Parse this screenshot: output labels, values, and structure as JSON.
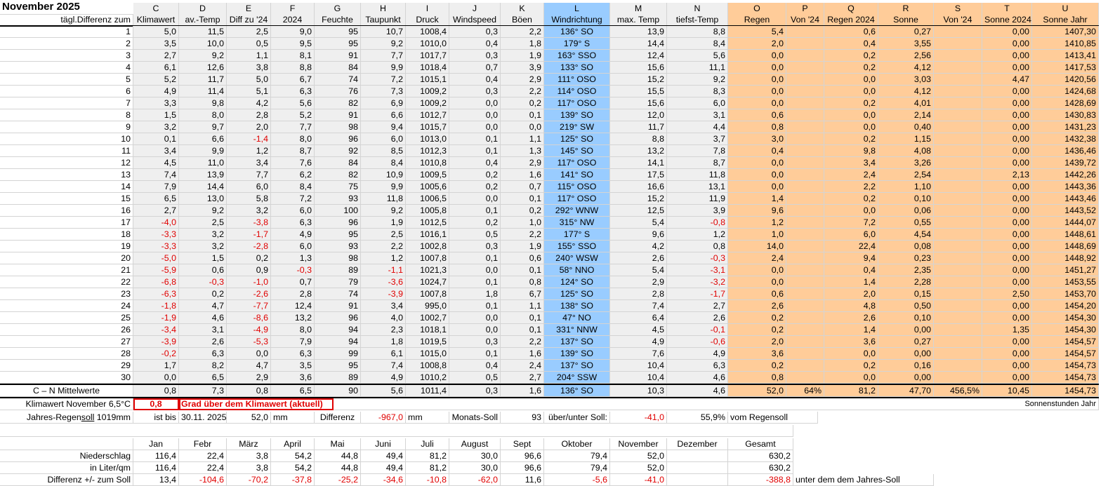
{
  "title": "November 2025",
  "column_letters": [
    "C",
    "D",
    "E",
    "F",
    "G",
    "H",
    "I",
    "J",
    "K",
    "L",
    "M",
    "N",
    "O",
    "P",
    "Q",
    "R",
    "S",
    "T",
    "U"
  ],
  "header_left": "tägl.Differenz zum",
  "column_names": [
    "Klimawert",
    "av.-Temp",
    "Diff zu '24",
    "2024",
    "Feuchte",
    "Taupunkt",
    "Druck",
    "Windspeed",
    "Böen",
    "Windrichtung",
    "max. Temp",
    "tiefst-Temp",
    "Regen",
    "Von '24",
    "Regen 2024",
    "Sonne",
    "Von '24",
    "Sonne 2024",
    "Sonne Jahr"
  ],
  "days": [
    [
      "1",
      "5,0",
      "11,5",
      "2,5",
      "9,0",
      "95",
      "10,7",
      "1008,4",
      "0,3",
      "2,2",
      "136° SO",
      "13,9",
      "8,8",
      "5,4",
      "",
      "0,6",
      "0,27",
      "",
      "0,00",
      "1407,30"
    ],
    [
      "2",
      "3,5",
      "10,0",
      "0,5",
      "9,5",
      "95",
      "9,2",
      "1010,0",
      "0,4",
      "1,8",
      "179° S",
      "14,4",
      "8,4",
      "2,0",
      "",
      "0,4",
      "3,55",
      "",
      "0,00",
      "1410,85"
    ],
    [
      "3",
      "2,7",
      "9,2",
      "1,1",
      "8,1",
      "91",
      "7,7",
      "1017,7",
      "0,3",
      "1,9",
      "163° SSO",
      "12,4",
      "5,6",
      "0,0",
      "",
      "0,2",
      "2,56",
      "",
      "0,00",
      "1413,41"
    ],
    [
      "4",
      "6,1",
      "12,6",
      "3,8",
      "8,8",
      "84",
      "9,9",
      "1018,4",
      "0,7",
      "3,9",
      "133° SO",
      "15,6",
      "11,1",
      "0,0",
      "",
      "0,2",
      "4,12",
      "",
      "0,00",
      "1417,53"
    ],
    [
      "5",
      "5,2",
      "11,7",
      "5,0",
      "6,7",
      "74",
      "7,2",
      "1015,1",
      "0,4",
      "2,9",
      "111° OSO",
      "15,2",
      "9,2",
      "0,0",
      "",
      "0,0",
      "3,03",
      "",
      "4,47",
      "1420,56"
    ],
    [
      "6",
      "4,9",
      "11,4",
      "5,1",
      "6,3",
      "76",
      "7,3",
      "1009,2",
      "0,3",
      "2,2",
      "114° OSO",
      "15,5",
      "8,3",
      "0,0",
      "",
      "0,0",
      "4,12",
      "",
      "0,00",
      "1424,68"
    ],
    [
      "7",
      "3,3",
      "9,8",
      "4,2",
      "5,6",
      "82",
      "6,9",
      "1009,2",
      "0,0",
      "0,2",
      "117° OSO",
      "15,6",
      "6,0",
      "0,0",
      "",
      "0,2",
      "4,01",
      "",
      "0,00",
      "1428,69"
    ],
    [
      "8",
      "1,5",
      "8,0",
      "2,8",
      "5,2",
      "91",
      "6,6",
      "1012,7",
      "0,0",
      "0,1",
      "139° SO",
      "12,0",
      "3,1",
      "0,6",
      "",
      "0,0",
      "2,14",
      "",
      "0,00",
      "1430,83"
    ],
    [
      "9",
      "3,2",
      "9,7",
      "2,0",
      "7,7",
      "98",
      "9,4",
      "1015,7",
      "0,0",
      "0,0",
      "219° SW",
      "11,7",
      "4,4",
      "0,8",
      "",
      "0,0",
      "0,40",
      "",
      "0,00",
      "1431,23"
    ],
    [
      "10",
      "0,1",
      "6,6",
      "-1,4",
      "8,0",
      "96",
      "6,0",
      "1013,0",
      "0,1",
      "1,1",
      "125° SO",
      "8,8",
      "3,7",
      "3,0",
      "",
      "0,2",
      "1,15",
      "",
      "0,00",
      "1432,38"
    ],
    [
      "11",
      "3,4",
      "9,9",
      "1,2",
      "8,7",
      "92",
      "8,5",
      "1012,3",
      "0,1",
      "1,3",
      "145° SO",
      "13,2",
      "7,8",
      "0,4",
      "",
      "9,8",
      "4,08",
      "",
      "0,00",
      "1436,46"
    ],
    [
      "12",
      "4,5",
      "11,0",
      "3,4",
      "7,6",
      "84",
      "8,4",
      "1010,8",
      "0,4",
      "2,9",
      "117° OSO",
      "14,1",
      "8,7",
      "0,0",
      "",
      "3,4",
      "3,26",
      "",
      "0,00",
      "1439,72"
    ],
    [
      "13",
      "7,4",
      "13,9",
      "7,7",
      "6,2",
      "82",
      "10,9",
      "1009,5",
      "0,2",
      "1,6",
      "141° SO",
      "17,5",
      "11,8",
      "0,0",
      "",
      "2,4",
      "2,54",
      "",
      "2,13",
      "1442,26"
    ],
    [
      "14",
      "7,9",
      "14,4",
      "6,0",
      "8,4",
      "75",
      "9,9",
      "1005,6",
      "0,2",
      "0,7",
      "115° OSO",
      "16,6",
      "13,1",
      "0,0",
      "",
      "2,2",
      "1,10",
      "",
      "0,00",
      "1443,36"
    ],
    [
      "15",
      "6,5",
      "13,0",
      "5,8",
      "7,2",
      "93",
      "11,8",
      "1006,5",
      "0,0",
      "0,1",
      "117° OSO",
      "15,2",
      "11,9",
      "1,4",
      "",
      "0,2",
      "0,10",
      "",
      "0,00",
      "1443,46"
    ],
    [
      "16",
      "2,7",
      "9,2",
      "3,2",
      "6,0",
      "100",
      "9,2",
      "1005,8",
      "0,1",
      "0,2",
      "292° WNW",
      "12,5",
      "3,9",
      "9,6",
      "",
      "0,0",
      "0,06",
      "",
      "0,00",
      "1443,52"
    ],
    [
      "17",
      "-4,0",
      "2,5",
      "-3,8",
      "6,3",
      "96",
      "1,9",
      "1012,5",
      "0,2",
      "1,0",
      "315° NW",
      "5,4",
      "-0,8",
      "1,2",
      "",
      "7,2",
      "0,55",
      "",
      "0,00",
      "1444,07"
    ],
    [
      "18",
      "-3,3",
      "3,2",
      "-1,7",
      "4,9",
      "95",
      "2,5",
      "1016,1",
      "0,5",
      "2,2",
      "177° S",
      "9,6",
      "1,2",
      "1,0",
      "",
      "6,0",
      "4,54",
      "",
      "0,00",
      "1448,61"
    ],
    [
      "19",
      "-3,3",
      "3,2",
      "-2,8",
      "6,0",
      "93",
      "2,2",
      "1002,8",
      "0,3",
      "1,9",
      "155° SSO",
      "4,2",
      "0,8",
      "14,0",
      "",
      "22,4",
      "0,08",
      "",
      "0,00",
      "1448,69"
    ],
    [
      "20",
      "-5,0",
      "1,5",
      "0,2",
      "1,3",
      "98",
      "1,2",
      "1007,8",
      "0,1",
      "0,6",
      "240° WSW",
      "2,6",
      "-0,3",
      "2,4",
      "",
      "9,4",
      "0,23",
      "",
      "0,00",
      "1448,92"
    ],
    [
      "21",
      "-5,9",
      "0,6",
      "0,9",
      "-0,3",
      "89",
      "-1,1",
      "1021,3",
      "0,0",
      "0,1",
      "58° NNO",
      "5,4",
      "-3,1",
      "0,0",
      "",
      "0,4",
      "2,35",
      "",
      "0,00",
      "1451,27"
    ],
    [
      "22",
      "-6,8",
      "-0,3",
      "-1,0",
      "0,7",
      "79",
      "-3,6",
      "1024,7",
      "0,1",
      "0,8",
      "124° SO",
      "2,9",
      "-3,2",
      "0,0",
      "",
      "1,4",
      "2,28",
      "",
      "0,00",
      "1453,55"
    ],
    [
      "23",
      "-6,3",
      "0,2",
      "-2,6",
      "2,8",
      "74",
      "-3,9",
      "1007,8",
      "1,8",
      "6,7",
      "125° SO",
      "2,8",
      "-1,7",
      "0,6",
      "",
      "2,0",
      "0,15",
      "",
      "2,50",
      "1453,70"
    ],
    [
      "24",
      "-1,8",
      "4,7",
      "-7,7",
      "12,4",
      "91",
      "3,4",
      "995,0",
      "0,1",
      "1,1",
      "138° SO",
      "7,4",
      "2,7",
      "2,6",
      "",
      "4,8",
      "0,50",
      "",
      "0,00",
      "1454,20"
    ],
    [
      "25",
      "-1,9",
      "4,6",
      "-8,6",
      "13,2",
      "96",
      "4,0",
      "1002,7",
      "0,0",
      "0,1",
      "47° NO",
      "6,4",
      "2,6",
      "0,2",
      "",
      "2,6",
      "0,10",
      "",
      "0,00",
      "1454,30"
    ],
    [
      "26",
      "-3,4",
      "3,1",
      "-4,9",
      "8,0",
      "94",
      "2,3",
      "1018,1",
      "0,0",
      "0,1",
      "331° NNW",
      "4,5",
      "-0,1",
      "0,2",
      "",
      "1,4",
      "0,00",
      "",
      "1,35",
      "1454,30"
    ],
    [
      "27",
      "-3,9",
      "2,6",
      "-5,3",
      "7,9",
      "94",
      "1,8",
      "1019,5",
      "0,3",
      "2,2",
      "137° SO",
      "4,9",
      "-0,6",
      "2,0",
      "",
      "3,6",
      "0,27",
      "",
      "0,00",
      "1454,57"
    ],
    [
      "28",
      "-0,2",
      "6,3",
      "0,0",
      "6,3",
      "99",
      "6,1",
      "1015,0",
      "0,1",
      "1,6",
      "139° SO",
      "7,6",
      "4,9",
      "3,6",
      "",
      "0,0",
      "0,00",
      "",
      "0,00",
      "1454,57"
    ],
    [
      "29",
      "1,7",
      "8,2",
      "4,7",
      "3,5",
      "95",
      "7,4",
      "1008,8",
      "0,4",
      "2,4",
      "137° SO",
      "10,4",
      "6,3",
      "0,2",
      "",
      "0,2",
      "0,16",
      "",
      "0,00",
      "1454,73"
    ],
    [
      "30",
      "0,0",
      "6,5",
      "2,9",
      "3,6",
      "89",
      "4,9",
      "1010,2",
      "0,5",
      "2,7",
      "204° SSW",
      "10,4",
      "4,6",
      "0,8",
      "",
      "0,0",
      "0,00",
      "",
      "0,00",
      "1454,73"
    ]
  ],
  "mean_label": "C – N Mittelwerte",
  "mean_values": [
    "0,8",
    "7,3",
    "0,8",
    "6,5",
    "90",
    "5,6",
    "1011,4",
    "0,3",
    "1,6",
    "136° SO",
    "10,3",
    "4,6",
    "52,0",
    "64%",
    "81,2",
    "47,70",
    "456,5%",
    "10,45",
    "1454,73"
  ],
  "klimawert": {
    "label": "Klimawert November 6,5°C",
    "value": "0,8",
    "text": "Grad über dem Klimawert (aktuell)",
    "sonnen_label": "Sonnenstunden Jahr"
  },
  "regensoll": {
    "label_pre": "Jahres-Regen",
    "label_u": "soll",
    "label_post": " 1019mm",
    "ist_bis": "ist bis",
    "date": "30.11. 2025",
    "ist_value": "52,0",
    "ist_unit": "mm",
    "diff_label": "Differenz",
    "diff_value": "-967,0",
    "diff_unit": "mm",
    "monats_label": "Monats-Soll",
    "monats_value": "93",
    "ueber_label": "über/unter Soll:",
    "ueber_value": "-41,0",
    "percent": "55,9%",
    "vom": "vom Regensoll"
  },
  "monthly": {
    "months": [
      "Jan",
      "Febr",
      "März",
      "April",
      "Mai",
      "Juni",
      "Juli",
      "August",
      "Sept",
      "Oktober",
      "November",
      "Dezember",
      "Gesamt"
    ],
    "rows": [
      {
        "label": "Niederschlag",
        "values": [
          "116,4",
          "22,4",
          "3,8",
          "54,2",
          "44,8",
          "49,4",
          "81,2",
          "30,0",
          "96,6",
          "79,4",
          "52,0",
          "",
          "630,2"
        ]
      },
      {
        "label": "in Liter/qm",
        "values": [
          "116,4",
          "22,4",
          "3,8",
          "54,2",
          "44,8",
          "49,4",
          "81,2",
          "30,0",
          "96,6",
          "79,4",
          "52,0",
          "",
          "630,2"
        ]
      },
      {
        "label": "Differenz  +/- zum Soll",
        "values": [
          "13,4",
          "-104,6",
          "-70,2",
          "-37,8",
          "-25,2",
          "-34,6",
          "-10,8",
          "-62,0",
          "11,6",
          "-5,6",
          "-41,0",
          "",
          "-388,8"
        ]
      }
    ],
    "note": "unter dem dem Jahres-Soll"
  }
}
